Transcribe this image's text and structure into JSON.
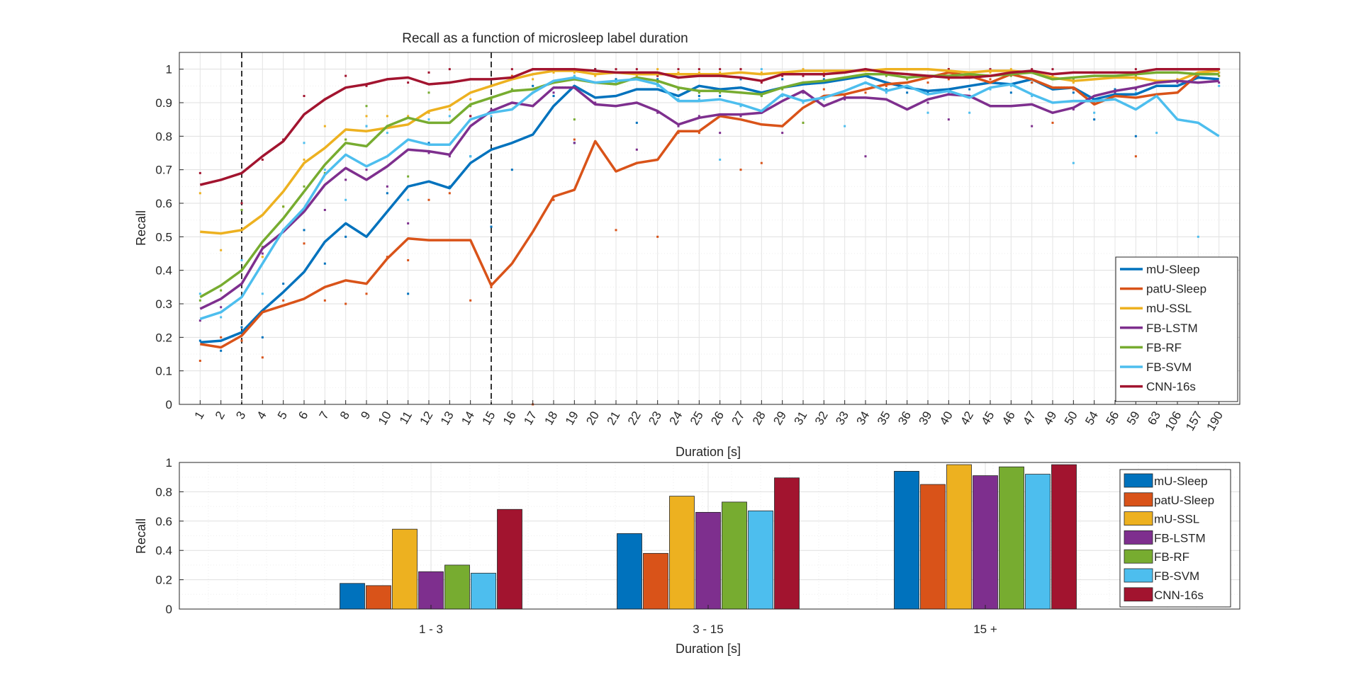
{
  "chart_data": [
    {
      "type": "line",
      "title": "Recall as a function of microsleep label duration",
      "xlabel": "Duration [s]",
      "ylabel": "Recall",
      "ylim": [
        0,
        1.05
      ],
      "yticks": [
        "0",
        "0.1",
        "0.2",
        "0.3",
        "0.4",
        "0.5",
        "0.6",
        "0.7",
        "0.8",
        "0.9",
        "1"
      ],
      "grid": true,
      "legend_position": "bottom-right",
      "vlines_dashed_at": [
        "3",
        "15"
      ],
      "categories": [
        "1",
        "2",
        "3",
        "4",
        "5",
        "6",
        "7",
        "8",
        "9",
        "10",
        "11",
        "12",
        "13",
        "14",
        "15",
        "16",
        "17",
        "18",
        "19",
        "20",
        "21",
        "22",
        "23",
        "24",
        "25",
        "26",
        "27",
        "28",
        "29",
        "31",
        "32",
        "33",
        "34",
        "35",
        "36",
        "39",
        "40",
        "42",
        "45",
        "46",
        "47",
        "49",
        "50",
        "54",
        "56",
        "59",
        "63",
        "106",
        "157",
        "190"
      ],
      "series": [
        {
          "name": "mU-Sleep",
          "color": "#0072BD",
          "values": [
            0.185,
            0.19,
            0.215,
            0.28,
            0.335,
            0.395,
            0.485,
            0.54,
            0.5,
            0.575,
            0.65,
            0.665,
            0.645,
            0.72,
            0.76,
            0.78,
            0.805,
            0.89,
            0.95,
            0.915,
            0.92,
            0.94,
            0.94,
            0.92,
            0.95,
            0.94,
            0.945,
            0.93,
            0.945,
            0.955,
            0.96,
            0.97,
            0.98,
            0.96,
            0.945,
            0.935,
            0.94,
            0.95,
            0.96,
            0.955,
            0.97,
            0.94,
            0.945,
            0.91,
            0.925,
            0.925,
            0.95,
            0.95,
            0.975,
            0.97
          ],
          "points": [
            0.19,
            0.16,
            0.23,
            0.2,
            0.36,
            0.52,
            0.42,
            0.5,
            0.83,
            0.63,
            0.33,
            0.78,
            0.65,
            0.74,
            0.53,
            0.7,
            0.95,
            0.92,
            0.78,
            1.0,
            0.97,
            0.84,
            0.97,
            0.94,
            0.92,
            0.92,
            0.97,
            0.92,
            0.97,
            0.93,
            0.97,
            0.97,
            0.96,
            0.94,
            0.93,
            0.93,
            0.94,
            0.94,
            0.96,
            0.93,
            0.96,
            0.94,
            0.93,
            0.85,
            0.94,
            0.8,
            0.95,
            0.99,
            0.96,
            0.99
          ]
        },
        {
          "name": "patU-Sleep",
          "color": "#D95319",
          "values": [
            0.18,
            0.17,
            0.205,
            0.275,
            0.295,
            0.315,
            0.35,
            0.37,
            0.36,
            0.435,
            0.495,
            0.49,
            0.49,
            0.49,
            0.355,
            0.42,
            0.515,
            0.62,
            0.64,
            0.785,
            0.695,
            0.72,
            0.73,
            0.815,
            0.815,
            0.86,
            0.85,
            0.835,
            0.83,
            0.885,
            0.92,
            0.925,
            0.94,
            0.955,
            0.96,
            0.975,
            0.99,
            0.98,
            0.96,
            0.985,
            0.97,
            0.945,
            0.945,
            0.895,
            0.92,
            0.915,
            0.925,
            0.93,
            0.985,
            0.985
          ],
          "points": [
            0.13,
            0.2,
            0.19,
            0.14,
            0.31,
            0.48,
            0.31,
            0.3,
            0.33,
            0.44,
            0.43,
            0.61,
            0.63,
            0.31,
            0.35,
            0.98,
            0.0,
            0.61,
            0.79,
            0.78,
            0.52,
            0.72,
            0.5,
            0.81,
            0.81,
            0.86,
            0.7,
            0.72,
            0.83,
            0.84,
            0.94,
            0.92,
            0.93,
            0.95,
            0.96,
            0.96,
            0.97,
            0.98,
            0.97,
            0.99,
            0.96,
            0.84,
            0.94,
            0.9,
            0.91,
            0.74,
            0.92,
            0.93,
            0.98,
            0.98
          ]
        },
        {
          "name": "mU-SSL",
          "color": "#EDB120",
          "values": [
            0.515,
            0.51,
            0.52,
            0.565,
            0.635,
            0.72,
            0.765,
            0.82,
            0.815,
            0.825,
            0.835,
            0.875,
            0.89,
            0.93,
            0.95,
            0.97,
            0.985,
            0.995,
            0.995,
            0.985,
            0.99,
            0.985,
            0.985,
            0.985,
            0.985,
            0.985,
            0.99,
            0.985,
            0.99,
            0.995,
            0.995,
            0.995,
            0.995,
            1.0,
            1.0,
            1.0,
            0.995,
            0.99,
            0.995,
            0.995,
            0.99,
            0.975,
            0.965,
            0.97,
            0.975,
            0.975,
            0.965,
            0.965,
            0.99,
            0.995
          ],
          "points": [
            0.63,
            0.46,
            0.6,
            0.44,
            0.59,
            0.73,
            0.83,
            0.79,
            0.86,
            0.86,
            0.86,
            0.87,
            0.88,
            0.91,
            0.95,
            0.97,
            0.97,
            0.99,
            0.99,
            0.98,
            0.99,
            0.98,
            1.0,
            0.99,
            0.99,
            0.99,
            1.0,
            0.99,
            0.99,
            1.0,
            0.99,
            0.99,
            1.0,
            1.0,
            1.0,
            1.0,
            1.0,
            0.99,
            0.99,
            1.0,
            0.99,
            0.98,
            0.96,
            0.97,
            0.98,
            0.97,
            0.96,
            0.97,
            0.99,
            0.99
          ]
        },
        {
          "name": "FB-LSTM",
          "color": "#7E2F8E",
          "values": [
            0.285,
            0.315,
            0.36,
            0.465,
            0.515,
            0.575,
            0.655,
            0.705,
            0.67,
            0.71,
            0.76,
            0.755,
            0.745,
            0.83,
            0.875,
            0.9,
            0.89,
            0.945,
            0.945,
            0.895,
            0.89,
            0.9,
            0.875,
            0.835,
            0.855,
            0.865,
            0.865,
            0.87,
            0.905,
            0.935,
            0.89,
            0.915,
            0.915,
            0.91,
            0.88,
            0.91,
            0.925,
            0.92,
            0.89,
            0.89,
            0.895,
            0.87,
            0.885,
            0.92,
            0.935,
            0.945,
            0.96,
            0.965,
            0.96,
            0.965
          ],
          "points": [
            0.25,
            0.29,
            0.6,
            0.45,
            0.52,
            0.58,
            0.58,
            0.67,
            0.7,
            0.65,
            0.54,
            0.75,
            0.74,
            0.86,
            0.88,
            0.9,
            0.89,
            0.93,
            0.78,
            0.9,
            0.89,
            0.76,
            0.87,
            0.83,
            0.86,
            0.81,
            0.86,
            0.87,
            0.81,
            0.93,
            0.89,
            0.91,
            0.74,
            0.91,
            0.88,
            0.9,
            0.85,
            0.92,
            0.89,
            0.89,
            0.83,
            0.87,
            0.88,
            0.92,
            0.93,
            0.94,
            0.96,
            0.96,
            0.96,
            0.96
          ]
        },
        {
          "name": "FB-RF",
          "color": "#77AC30",
          "values": [
            0.32,
            0.355,
            0.4,
            0.485,
            0.555,
            0.635,
            0.715,
            0.78,
            0.77,
            0.83,
            0.855,
            0.84,
            0.84,
            0.895,
            0.915,
            0.935,
            0.94,
            0.96,
            0.97,
            0.96,
            0.955,
            0.975,
            0.965,
            0.945,
            0.935,
            0.935,
            0.93,
            0.925,
            0.945,
            0.96,
            0.965,
            0.975,
            0.985,
            0.985,
            0.975,
            0.98,
            0.98,
            0.985,
            0.98,
            0.985,
            0.99,
            0.97,
            0.975,
            0.98,
            0.98,
            0.985,
            0.99,
            0.99,
            0.985,
            0.985
          ],
          "points": [
            0.31,
            0.34,
            0.58,
            0.47,
            0.59,
            0.65,
            0.69,
            0.79,
            0.89,
            0.83,
            0.68,
            0.93,
            0.89,
            0.89,
            0.91,
            0.94,
            0.93,
            0.96,
            0.85,
            0.96,
            0.96,
            0.97,
            0.96,
            0.94,
            0.93,
            0.93,
            0.93,
            0.92,
            0.94,
            0.84,
            0.96,
            0.97,
            0.98,
            0.98,
            0.97,
            0.98,
            0.98,
            0.98,
            0.98,
            0.98,
            0.99,
            0.97,
            0.97,
            0.98,
            0.98,
            0.98,
            0.99,
            0.99,
            0.98,
            0.98
          ]
        },
        {
          "name": "FB-SVM",
          "color": "#4DBEEE",
          "values": [
            0.255,
            0.275,
            0.32,
            0.42,
            0.52,
            0.585,
            0.685,
            0.745,
            0.71,
            0.74,
            0.79,
            0.775,
            0.775,
            0.85,
            0.87,
            0.88,
            0.93,
            0.965,
            0.975,
            0.96,
            0.965,
            0.97,
            0.955,
            0.905,
            0.905,
            0.91,
            0.895,
            0.875,
            0.925,
            0.905,
            0.915,
            0.935,
            0.96,
            0.935,
            0.95,
            0.925,
            0.935,
            0.915,
            0.945,
            0.955,
            0.925,
            0.9,
            0.905,
            0.905,
            0.91,
            0.88,
            0.92,
            0.85,
            0.84,
            0.8
          ],
          "points": [
            0.33,
            0.26,
            0.43,
            0.33,
            0.52,
            0.78,
            0.7,
            0.61,
            0.83,
            0.81,
            0.61,
            0.85,
            0.86,
            0.74,
            0.86,
            0.88,
            0.93,
            0.96,
            0.98,
            0.96,
            0.96,
            0.97,
            0.95,
            0.91,
            0.91,
            0.73,
            0.89,
            1.0,
            0.92,
            0.9,
            0.91,
            0.83,
            0.96,
            0.93,
            0.95,
            0.87,
            0.93,
            0.87,
            0.94,
            0.95,
            0.92,
            0.9,
            0.72,
            0.87,
            0.91,
            0.93,
            0.81,
            0.95,
            0.5,
            0.95
          ]
        },
        {
          "name": "CNN-16s",
          "color": "#A2142F",
          "values": [
            0.655,
            0.67,
            0.69,
            0.74,
            0.785,
            0.865,
            0.91,
            0.945,
            0.955,
            0.97,
            0.975,
            0.955,
            0.96,
            0.97,
            0.97,
            0.975,
            1.0,
            1.0,
            1.0,
            0.995,
            0.99,
            0.99,
            0.99,
            0.975,
            0.98,
            0.98,
            0.975,
            0.965,
            0.985,
            0.985,
            0.985,
            0.99,
            1.0,
            0.99,
            0.985,
            0.98,
            0.975,
            0.975,
            0.98,
            0.99,
            0.995,
            0.985,
            0.99,
            0.99,
            0.99,
            0.99,
            1.0,
            1.0,
            1.0,
            1.0
          ],
          "points": [
            0.69,
            0.67,
            0.6,
            0.73,
            0.79,
            0.92,
            0.91,
            0.98,
            0.95,
            0.97,
            0.96,
            0.99,
            1.0,
            0.86,
            0.97,
            1.0,
            1.0,
            1.0,
            1.0,
            1.0,
            1.0,
            1.0,
            0.98,
            1.0,
            1.0,
            1.0,
            1.0,
            0.96,
            0.98,
            0.98,
            0.98,
            0.99,
            1.0,
            1.0,
            1.0,
            0.98,
            1.0,
            0.98,
            1.0,
            0.99,
            1.0,
            1.0,
            0.99,
            0.99,
            0.99,
            1.0,
            1.0,
            1.0,
            1.0,
            1.0
          ]
        }
      ]
    },
    {
      "type": "bar",
      "title": "",
      "xlabel": "Duration [s]",
      "ylabel": "Recall",
      "ylim": [
        0,
        1
      ],
      "yticks": [
        "0",
        "0.2",
        "0.4",
        "0.6",
        "0.8",
        "1"
      ],
      "grid": true,
      "legend_position": "right",
      "categories": [
        "1 - 3",
        "3 - 15",
        "15 +"
      ],
      "series": [
        {
          "name": "mU-Sleep",
          "color": "#0072BD",
          "values": [
            0.175,
            0.515,
            0.94
          ]
        },
        {
          "name": "patU-Sleep",
          "color": "#D95319",
          "values": [
            0.16,
            0.38,
            0.85
          ]
        },
        {
          "name": "mU-SSL",
          "color": "#EDB120",
          "values": [
            0.545,
            0.77,
            0.985
          ]
        },
        {
          "name": "FB-LSTM",
          "color": "#7E2F8E",
          "values": [
            0.255,
            0.66,
            0.91
          ]
        },
        {
          "name": "FB-RF",
          "color": "#77AC30",
          "values": [
            0.3,
            0.73,
            0.97
          ]
        },
        {
          "name": "FB-SVM",
          "color": "#4DBEEE",
          "values": [
            0.245,
            0.67,
            0.92
          ]
        },
        {
          "name": "CNN-16s",
          "color": "#A2142F",
          "values": [
            0.68,
            0.895,
            0.985
          ]
        }
      ]
    }
  ]
}
